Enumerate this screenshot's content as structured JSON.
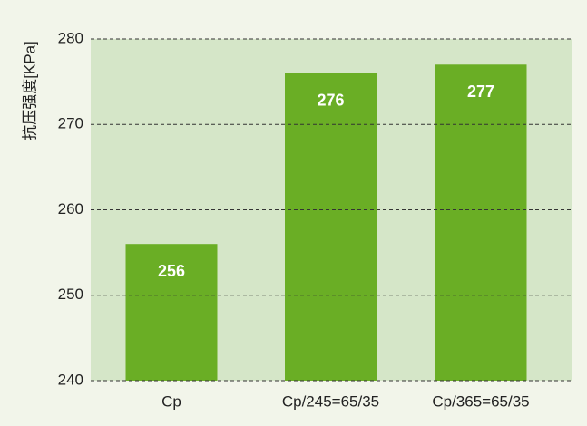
{
  "chart_data": {
    "type": "bar",
    "y_label": "抗压强度[KPa]",
    "categories": [
      "Cp",
      "Cp/245=65/35",
      "Cp/365=65/35"
    ],
    "values": [
      256,
      276,
      277
    ],
    "color": "#6aae25",
    "ylim": [
      240,
      280
    ],
    "yticks": [
      240,
      250,
      260,
      270,
      280
    ],
    "grid": true
  }
}
